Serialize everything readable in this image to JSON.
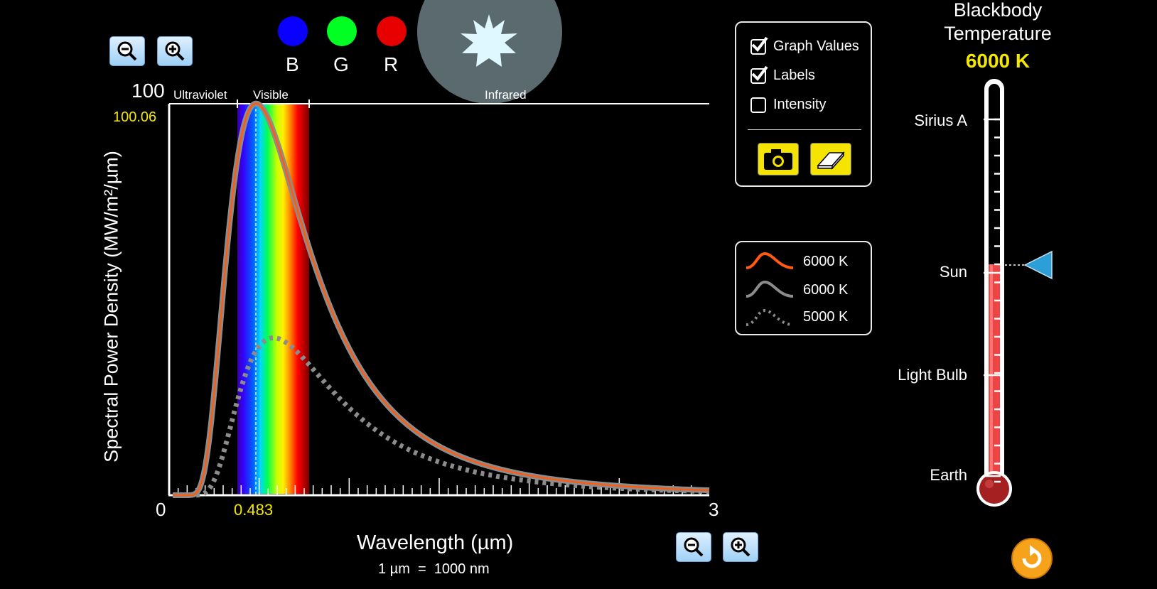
{
  "zoom_vertical": {
    "out_icon": "zoom-out-icon",
    "in_icon": "zoom-in-icon"
  },
  "zoom_horizontal": {
    "out_icon": "zoom-out-icon",
    "in_icon": "zoom-in-icon"
  },
  "bgr": {
    "b": {
      "label": "B",
      "color": "#0a00ff"
    },
    "g": {
      "label": "G",
      "color": "#00ff22"
    },
    "r": {
      "label": "R",
      "color": "#e60000"
    }
  },
  "star": {
    "icon": "star-icon",
    "glow": "#5a6a6e",
    "color": "#dff8ff"
  },
  "graph": {
    "y_max_label": "100",
    "y_peak_value": "100.06",
    "x_min_label": "0",
    "x_max_label": "3",
    "x_peak_value": "0.483",
    "region_ultraviolet": "Ultraviolet",
    "region_visible": "Visible",
    "region_infrared": "Infrared",
    "ylabel": "Spectral Power Density (MW/m²/µm)",
    "xlabel": "Wavelength (µm)",
    "unit_note": "1 µm  =  1000 nm"
  },
  "chart_data": {
    "type": "line",
    "xlabel": "Wavelength (µm)",
    "ylabel": "Spectral Power Density (MW/m²/µm)",
    "xlim": [
      0,
      3
    ],
    "ylim": [
      0,
      100
    ],
    "series": [
      {
        "name": "6000 K",
        "temperature": 6000,
        "peak_x": 0.483,
        "peak_y": 100.06,
        "color": "#ff5a10",
        "style": "solid"
      },
      {
        "name": "6000 K",
        "temperature": 6000,
        "peak_x": 0.483,
        "peak_y": 100.06,
        "color": "#8c8c8c",
        "style": "solid"
      },
      {
        "name": "5000 K",
        "temperature": 5000,
        "peak_x": 0.58,
        "peak_y": 40.2,
        "color": "#8c8c8c",
        "style": "dotted"
      }
    ]
  },
  "options": {
    "graph_values": {
      "label": "Graph Values",
      "checked": true
    },
    "labels": {
      "label": "Labels",
      "checked": true
    },
    "intensity": {
      "label": "Intensity",
      "checked": false
    },
    "camera_icon": "camera-icon",
    "eraser_icon": "eraser-icon"
  },
  "legend": [
    {
      "label": "6000 K",
      "color": "#ff5a10",
      "style": "solid"
    },
    {
      "label": "6000 K",
      "color": "#8c8c8c",
      "style": "solid"
    },
    {
      "label": "5000 K",
      "color": "#8c8c8c",
      "style": "dotted"
    }
  ],
  "thermometer": {
    "title_line1": "Blackbody",
    "title_line2": "Temperature",
    "value": "6000 K",
    "value_color": "#f4e800",
    "fill_color": "#e44",
    "marks": [
      "Sirius A",
      "Sun",
      "Light Bulb",
      "Earth"
    ],
    "slider_icon": "triangle-pointer-icon"
  },
  "reset": {
    "icon": "reset-icon",
    "color": "#f7a21b"
  }
}
